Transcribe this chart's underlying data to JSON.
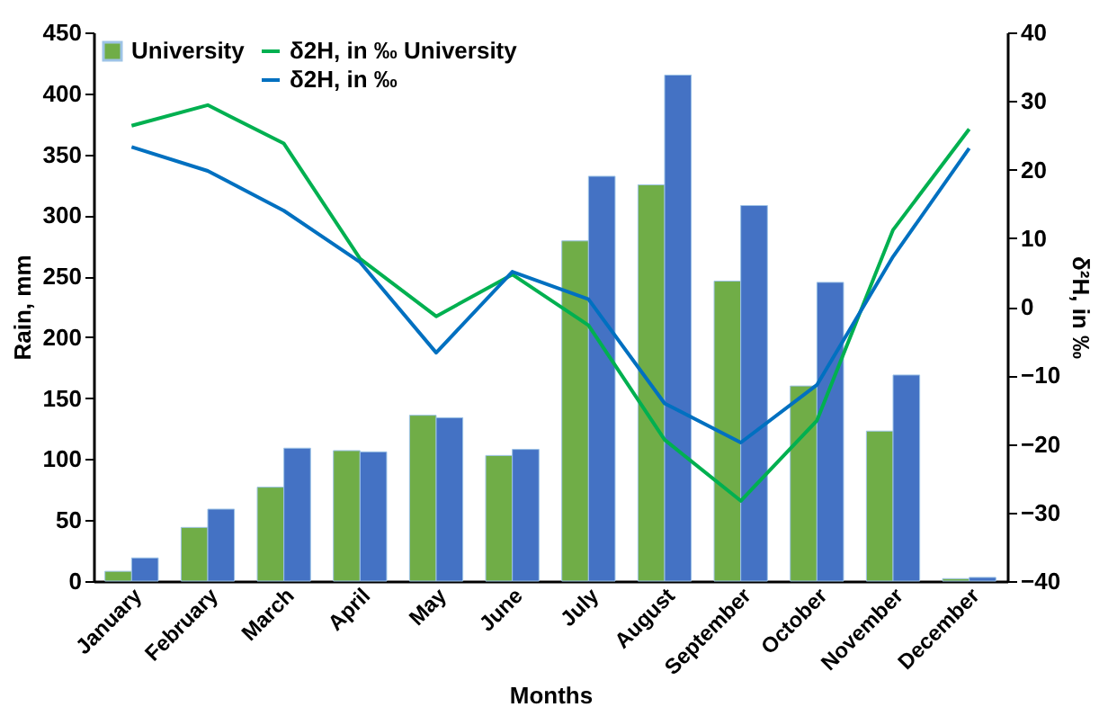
{
  "chart_data": {
    "type": "bar",
    "xlabel": "Months",
    "ylabel": "Rain, mm",
    "y2label": "δ²H, in ‰",
    "categories": [
      "January",
      "February",
      "March",
      "April",
      "May",
      "June",
      "July",
      "August",
      "September",
      "October",
      "November",
      "December"
    ],
    "series": [
      {
        "name": "University",
        "color": "#70ad47",
        "values": [
          8,
          44,
          77,
          107,
          136,
          103,
          279,
          325,
          246,
          160,
          123,
          2
        ]
      },
      {
        "color": "#4472c4",
        "values": [
          19,
          59,
          109,
          106,
          134,
          108,
          332,
          415,
          308,
          245,
          169,
          3
        ]
      },
      {
        "name": "δ2H, in ‰ University",
        "type": "line",
        "axis": "y2",
        "color": "#00b050",
        "values": [
          26.4,
          29.4,
          23.8,
          7,
          -1.4,
          4.7,
          -2.7,
          -19.4,
          -28.3,
          -16.6,
          11.2,
          25.9
        ]
      },
      {
        "name": "δ2H, in ‰",
        "type": "line",
        "axis": "y2",
        "color": "#0070c0",
        "values": [
          23.3,
          19.8,
          14,
          6.5,
          -6.7,
          5.1,
          1.1,
          -14.1,
          -19.8,
          -11.4,
          7.3,
          23.1
        ]
      }
    ],
    "ylim": [
      0,
      450
    ],
    "yticks": [
      0,
      50,
      100,
      150,
      200,
      250,
      300,
      350,
      400,
      450
    ],
    "y2lim": [
      -40,
      40
    ],
    "y2ticks": [
      -40,
      -30,
      -20,
      -10,
      0,
      10,
      20,
      30,
      40
    ],
    "legend": "top left",
    "grid": false
  }
}
